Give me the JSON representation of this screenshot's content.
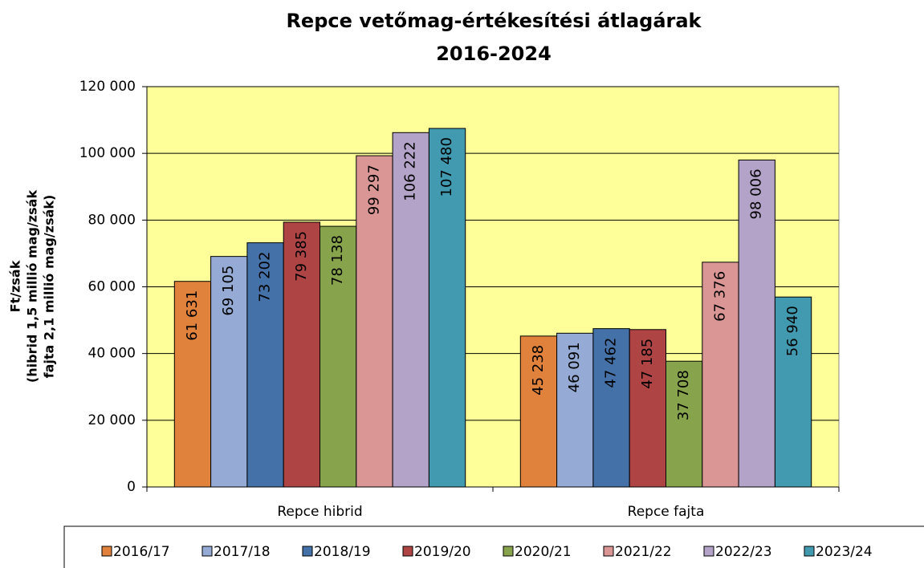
{
  "chart_data": {
    "type": "bar",
    "title": "Repce vetőmag-értékesítési átlagárak",
    "subtitle": "2016-2024",
    "y_label": [
      "Ft/zsák",
      "(hibrid 1,5 millió mag/zsák",
      "fajta 2,1 millió mag/zsák)"
    ],
    "categories": [
      "Repce hibrid",
      "Repce fajta"
    ],
    "series": [
      {
        "name": "2016/17",
        "color": "#e0823c",
        "values": [
          61631,
          45238
        ],
        "value_labels": [
          "61 631",
          "45 238"
        ]
      },
      {
        "name": "2017/18",
        "color": "#95aad4",
        "values": [
          69105,
          46091
        ],
        "value_labels": [
          "69 105",
          "46 091"
        ]
      },
      {
        "name": "2018/19",
        "color": "#4472a8",
        "values": [
          73202,
          47462
        ],
        "value_labels": [
          "73 202",
          "47 462"
        ]
      },
      {
        "name": "2019/20",
        "color": "#ae4544",
        "values": [
          79385,
          47185
        ],
        "value_labels": [
          "79 385",
          "47 185"
        ]
      },
      {
        "name": "2020/21",
        "color": "#87a44c",
        "values": [
          78138,
          37708
        ],
        "value_labels": [
          "78 138",
          "37 708"
        ]
      },
      {
        "name": "2021/22",
        "color": "#d99695",
        "values": [
          99297,
          67376
        ],
        "value_labels": [
          "99 297",
          "67 376"
        ]
      },
      {
        "name": "2022/23",
        "color": "#b4a3c8",
        "values": [
          106222,
          98006
        ],
        "value_labels": [
          "106 222",
          "98 006"
        ]
      },
      {
        "name": "2023/24",
        "color": "#419aaf",
        "values": [
          107480,
          56940
        ],
        "value_labels": [
          "107 480",
          "56 940"
        ]
      }
    ],
    "ylim": [
      0,
      120000
    ],
    "yticks": [
      0,
      {
        "value": 20000,
        "label": "20 000"
      },
      {
        "value": 40000,
        "label": "40 000"
      },
      {
        "value": 60000,
        "label": "60 000"
      },
      {
        "value": 80000,
        "label": "80 000"
      },
      {
        "value": 100000,
        "label": "100 000"
      },
      {
        "value": 120000,
        "label": "120 000"
      }
    ],
    "grid": true,
    "plot_background": "#ffff99",
    "legend": "bottom"
  }
}
